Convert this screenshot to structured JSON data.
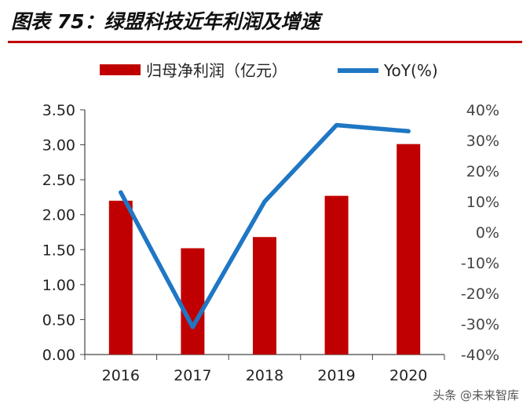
{
  "title": "图表 75：绿盟科技近年利润及增速",
  "watermark": "头条 @未来智库",
  "chart_data": {
    "type": "bar",
    "categories": [
      "2016",
      "2017",
      "2018",
      "2019",
      "2020"
    ],
    "series": [
      {
        "name": "归母净利润（亿元）",
        "type": "bar",
        "axis": "left",
        "color": "#c00000",
        "values": [
          2.2,
          1.52,
          1.68,
          2.27,
          3.01
        ]
      },
      {
        "name": "YoY(%)",
        "type": "line",
        "axis": "right",
        "color": "#1f77c4",
        "values": [
          13,
          -31,
          10,
          35,
          33
        ]
      }
    ],
    "y_left": {
      "range": [
        0,
        3.5
      ],
      "ticks": [
        "0.00",
        "0.50",
        "1.00",
        "1.50",
        "2.00",
        "2.50",
        "3.00",
        "3.50"
      ]
    },
    "y_right": {
      "range": [
        -40,
        40
      ],
      "ticks": [
        "-40%",
        "-30%",
        "-20%",
        "-10%",
        "0%",
        "10%",
        "20%",
        "30%",
        "40%"
      ]
    },
    "legend_position": "top"
  }
}
